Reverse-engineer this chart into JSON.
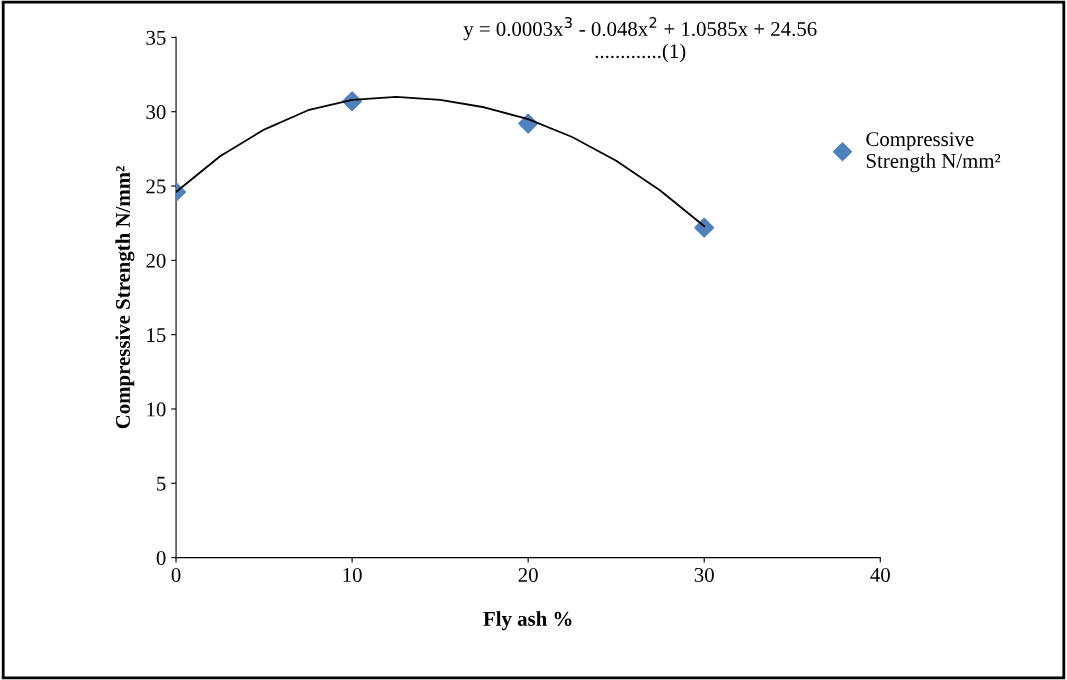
{
  "chart_data": {
    "type": "scatter",
    "xlabel": "Fly ash %",
    "ylabel": "Compressive Strength N/mm²",
    "xlim": [
      0,
      40
    ],
    "xticks": [
      0,
      10,
      20,
      30,
      40
    ],
    "ylim": [
      0,
      35
    ],
    "yticks": [
      0,
      5,
      10,
      15,
      20,
      25,
      30,
      35
    ],
    "grid": false,
    "legend": "right",
    "marker": "diamond",
    "series": [
      {
        "name": "Compressive\nStrength N/mm²",
        "color": "#4f81bd",
        "x": [
          0,
          10,
          20,
          30
        ],
        "values": [
          24.6,
          30.7,
          29.2,
          22.2
        ]
      },
      {
        "type": "line",
        "color": "#000000",
        "x": [
          0,
          2.5,
          5,
          7.5,
          10,
          12.5,
          15,
          17.5,
          20,
          22.5,
          25,
          27.5,
          30
        ],
        "values": [
          24.6,
          27.0,
          28.8,
          30.1,
          30.8,
          31.0,
          30.8,
          30.3,
          29.5,
          28.3,
          26.7,
          24.7,
          22.3
        ],
        "marker": "none",
        "line_style": "solid"
      }
    ],
    "annotations": [
      "y = 0.0003x$^{3}$ - 0.048x$^{2}$ + 1.0585x + 24.56\n.............(1)"
    ]
  }
}
